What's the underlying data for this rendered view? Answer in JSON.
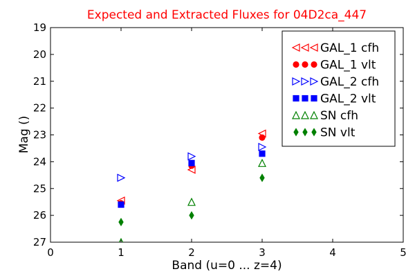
{
  "chart_data": {
    "type": "scatter",
    "title": "Expected and Extracted Fluxes for 04D2ca_447",
    "title_color": "#ff0000",
    "xlabel": "Band (u=0 ... z=4)",
    "ylabel": "Mag ()",
    "xlim": [
      0,
      5
    ],
    "ylim": [
      27,
      19
    ],
    "y_inverted": true,
    "xticks": [
      0,
      1,
      2,
      3,
      4,
      5
    ],
    "yticks": [
      19,
      20,
      21,
      22,
      23,
      24,
      25,
      26,
      27
    ],
    "grid": false,
    "legend_position": "top-right",
    "series": [
      {
        "name": "GAL_1 cfh",
        "marker": "triangle-left",
        "filled": false,
        "color": "#ff0000",
        "x": [
          1,
          2,
          3
        ],
        "y": [
          25.45,
          24.3,
          22.95
        ]
      },
      {
        "name": "GAL_1 vlt",
        "marker": "circle",
        "filled": true,
        "color": "#ff0000",
        "x": [
          1,
          2,
          3
        ],
        "y": [
          25.55,
          24.15,
          23.1
        ]
      },
      {
        "name": "GAL_2 cfh",
        "marker": "triangle-right",
        "filled": false,
        "color": "#0000ff",
        "x": [
          1,
          2,
          3
        ],
        "y": [
          24.6,
          23.8,
          23.45
        ]
      },
      {
        "name": "GAL_2 vlt",
        "marker": "square",
        "filled": true,
        "color": "#0000ff",
        "x": [
          1,
          2,
          3
        ],
        "y": [
          25.6,
          24.05,
          23.7
        ]
      },
      {
        "name": "SN cfh",
        "marker": "triangle-up",
        "filled": false,
        "color": "#008000",
        "x": [
          1,
          2,
          3
        ],
        "y": [
          27.0,
          25.5,
          24.05
        ]
      },
      {
        "name": "SN vlt",
        "marker": "diamond",
        "filled": true,
        "color": "#008000",
        "x": [
          1,
          2,
          3
        ],
        "y": [
          26.25,
          26.0,
          24.6
        ]
      }
    ]
  }
}
